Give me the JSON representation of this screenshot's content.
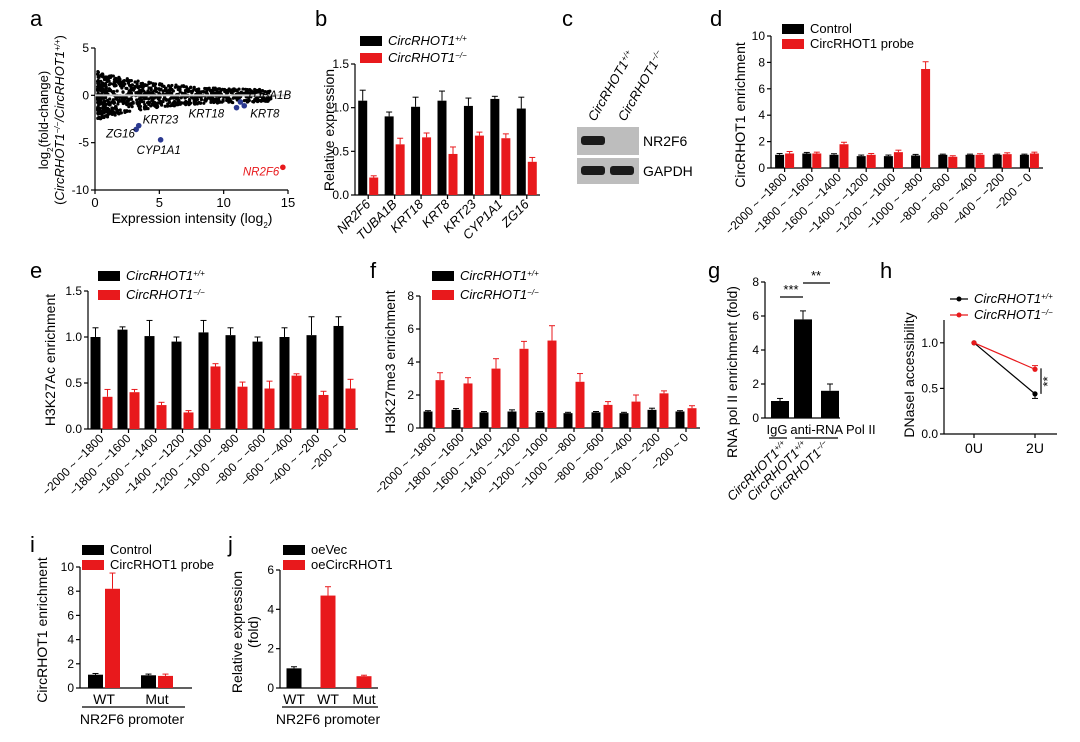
{
  "colors": {
    "black": "#000000",
    "red": "#e8191c",
    "grey": "#9a9a9a",
    "blue": "#2b3990"
  },
  "panels": {
    "a": {
      "letter": "a",
      "ylabel_line1": "log2(fold-change)",
      "ylabel_line2": "(CircRHOT1-/-/CircRHOT1+/+)",
      "xlabel": "Expression intensity (log2)"
    },
    "b": {
      "letter": "b",
      "ylabel": "Relative expression"
    },
    "c": {
      "letter": "c",
      "col1": "CircRHOT1+/+",
      "col2": "CircRHOT1-/-",
      "band1": "NR2F6",
      "band2": "GAPDH"
    },
    "d": {
      "letter": "d",
      "ylabel": "CircRHOT1 enrichment"
    },
    "e": {
      "letter": "e",
      "ylabel": "H3K27Ac enrichment"
    },
    "f": {
      "letter": "f",
      "ylabel": "H3K27me3 enrichment"
    },
    "g": {
      "letter": "g",
      "ylabel": "RNA pol II enrichment (fold)",
      "group1": "IgG",
      "group2": "anti-RNA Pol II"
    },
    "h": {
      "letter": "h",
      "ylabel": "DNaseI accessibility"
    },
    "i": {
      "letter": "i",
      "ylabel": "CircRHOT1 enrichment",
      "xgroup": "NR2F6 promoter"
    },
    "j": {
      "letter": "j",
      "ylabel_line1": "Relative expression",
      "ylabel_line2": "(fold)",
      "xgroup": "NR2F6 promoter"
    }
  },
  "chart_data": [
    {
      "panel": "a",
      "type": "scatter",
      "xlim": [
        0,
        15
      ],
      "ylim": [
        -10,
        5
      ],
      "xticks": [
        0,
        5,
        10,
        15
      ],
      "yticks": [
        -10,
        -5,
        0,
        5
      ],
      "highlighted": [
        {
          "label": "TUBA1B",
          "x": 11.3,
          "y": -0.7,
          "color": "blue"
        },
        {
          "label": "KRT18",
          "x": 11.0,
          "y": -1.3,
          "color": "blue"
        },
        {
          "label": "KRT8",
          "x": 11.6,
          "y": -1.1,
          "color": "blue"
        },
        {
          "label": "KRT23",
          "x": 3.4,
          "y": -3.2,
          "color": "blue"
        },
        {
          "label": "ZG16",
          "x": 3.2,
          "y": -3.6,
          "color": "blue"
        },
        {
          "label": "CYP1A1",
          "x": 5.1,
          "y": -4.7,
          "color": "blue"
        },
        {
          "label": "NR2F6",
          "x": 14.6,
          "y": -7.6,
          "color": "red"
        }
      ]
    },
    {
      "panel": "b",
      "type": "bar",
      "categories": [
        "NR2F6",
        "TUBA1B",
        "KRT18",
        "KRT8",
        "KRT23",
        "CYP1A1",
        "ZG16"
      ],
      "ylim": [
        0,
        1.5
      ],
      "yticks": [
        "0.0",
        "0.5",
        "1.0",
        "1.5"
      ],
      "series": [
        {
          "name": "CircRHOT1+/+",
          "color": "black",
          "values": [
            1.08,
            0.9,
            1.01,
            1.08,
            1.02,
            1.1,
            0.99
          ],
          "errors": [
            0.12,
            0.05,
            0.11,
            0.11,
            0.09,
            0.03,
            0.13
          ]
        },
        {
          "name": "CircRHOT1-/-",
          "color": "red",
          "values": [
            0.2,
            0.58,
            0.66,
            0.47,
            0.68,
            0.65,
            0.38
          ],
          "errors": [
            0.02,
            0.07,
            0.05,
            0.08,
            0.04,
            0.05,
            0.05
          ]
        }
      ]
    },
    {
      "panel": "d",
      "type": "bar",
      "categories": [
        "-2000 ~ -1800",
        "-1800 ~ -1600",
        "-1600 ~ -1400",
        "-1400 ~ -1200",
        "-1200 ~ -1000",
        "-1000 ~ -800",
        "-800 ~ -600",
        "-600 ~ -400",
        "-400 ~ -200",
        "-200 ~ 0"
      ],
      "ylim": [
        0,
        10
      ],
      "yticks": [
        "0",
        "2",
        "4",
        "6",
        "8",
        "10"
      ],
      "series": [
        {
          "name": "Control",
          "color": "black",
          "values": [
            1.0,
            1.1,
            1.0,
            0.9,
            0.9,
            0.95,
            1.0,
            1.0,
            1.0,
            1.0
          ],
          "errors": [
            0.1,
            0.08,
            0.08,
            0.08,
            0.08,
            0.08,
            0.05,
            0.05,
            0.05,
            0.05
          ]
        },
        {
          "name": "CircRHOT1 probe",
          "color": "red",
          "values": [
            1.1,
            1.1,
            1.8,
            1.0,
            1.2,
            7.5,
            0.85,
            1.0,
            1.05,
            1.1
          ],
          "errors": [
            0.15,
            0.1,
            0.15,
            0.1,
            0.15,
            0.55,
            0.08,
            0.08,
            0.1,
            0.1
          ]
        }
      ]
    },
    {
      "panel": "e",
      "type": "bar",
      "categories": [
        "-2000 ~ -1800",
        "-1800 ~ -1600",
        "-1600 ~ -1400",
        "-1400 ~ -1200",
        "-1200 ~ -1000",
        "-1000 ~ -800",
        "-800 ~ -600",
        "-600 ~ -400",
        "-400 ~ -200",
        "-200 ~ 0"
      ],
      "ylim": [
        0,
        1.5
      ],
      "yticks": [
        "0.0",
        "0.5",
        "1.0",
        "1.5"
      ],
      "series": [
        {
          "name": "CircRHOT1+/+",
          "color": "black",
          "values": [
            1.0,
            1.08,
            1.01,
            0.95,
            1.05,
            1.02,
            0.95,
            1.0,
            1.02,
            1.12
          ],
          "errors": [
            0.1,
            0.03,
            0.17,
            0.05,
            0.13,
            0.08,
            0.05,
            0.1,
            0.2,
            0.1
          ]
        },
        {
          "name": "CircRHOT1-/-",
          "color": "red",
          "values": [
            0.35,
            0.4,
            0.26,
            0.18,
            0.68,
            0.46,
            0.44,
            0.58,
            0.37,
            0.44
          ],
          "errors": [
            0.08,
            0.03,
            0.03,
            0.02,
            0.03,
            0.05,
            0.08,
            0.02,
            0.04,
            0.1
          ]
        }
      ]
    },
    {
      "panel": "f",
      "type": "bar",
      "categories": [
        "-2000 ~ -1800",
        "-1800 ~ -1600",
        "-1600 ~ -1400",
        "-1400 ~ -1200",
        "-1200 ~ -1000",
        "-1000 ~ -800",
        "-800 ~ -600",
        "-600 ~ -400",
        "-400 ~ -200",
        "-200 ~ 0"
      ],
      "ylim": [
        0,
        8
      ],
      "yticks": [
        "0",
        "2",
        "4",
        "6",
        "8"
      ],
      "series": [
        {
          "name": "CircRHOT1+/+",
          "color": "black",
          "values": [
            1.0,
            1.1,
            0.95,
            1.0,
            0.95,
            0.9,
            0.95,
            0.9,
            1.1,
            1.0
          ],
          "errors": [
            0.05,
            0.08,
            0.05,
            0.1,
            0.05,
            0.05,
            0.05,
            0.05,
            0.1,
            0.05
          ]
        },
        {
          "name": "CircRHOT1-/-",
          "color": "red",
          "values": [
            2.9,
            2.7,
            3.6,
            4.8,
            5.3,
            2.8,
            1.4,
            1.6,
            2.1,
            1.2
          ],
          "errors": [
            0.45,
            0.35,
            0.6,
            0.45,
            0.9,
            0.5,
            0.2,
            0.4,
            0.15,
            0.15
          ]
        }
      ]
    },
    {
      "panel": "g",
      "type": "bar",
      "categories": [
        "CircRHOT1+/+",
        "CircRHOT1+/+",
        "CircRHOT1-/-"
      ],
      "ylim": [
        0,
        8
      ],
      "yticks": [
        "0",
        "2",
        "4",
        "6",
        "8"
      ],
      "values": [
        1.0,
        5.8,
        1.6
      ],
      "errors": [
        0.15,
        0.5,
        0.4
      ],
      "significance": [
        "***",
        "**"
      ]
    },
    {
      "panel": "h",
      "type": "line",
      "x": [
        "0U",
        "2U"
      ],
      "ylim": [
        0,
        1.25
      ],
      "yticks": [
        "0.0",
        "0.5",
        "1.0"
      ],
      "significance": "**",
      "series": [
        {
          "name": "CircRHOT1+/+",
          "color": "black",
          "values": [
            1.0,
            0.44
          ],
          "errors": [
            0.0,
            0.05
          ]
        },
        {
          "name": "CircRHOT1-/-",
          "color": "red",
          "values": [
            1.0,
            0.71
          ],
          "errors": [
            0.0,
            0.04
          ]
        }
      ]
    },
    {
      "panel": "i",
      "type": "bar",
      "categories": [
        "WT",
        "Mut"
      ],
      "ylim": [
        0,
        10
      ],
      "yticks": [
        "0",
        "2",
        "4",
        "6",
        "8",
        "10"
      ],
      "series": [
        {
          "name": "Control",
          "color": "black",
          "values": [
            1.1,
            1.05
          ],
          "errors": [
            0.1,
            0.1
          ]
        },
        {
          "name": "CircRHOT1 probe",
          "color": "red",
          "values": [
            8.2,
            1.0
          ],
          "errors": [
            1.3,
            0.15
          ]
        }
      ]
    },
    {
      "panel": "j",
      "type": "bar",
      "categories": [
        "WT",
        "WT",
        "Mut"
      ],
      "ylim": [
        0,
        6
      ],
      "yticks": [
        "0",
        "2",
        "4",
        "6"
      ],
      "values": [
        1.0,
        4.7,
        0.6
      ],
      "errors": [
        0.08,
        0.45,
        0.05
      ],
      "bar_colors": [
        "black",
        "red",
        "red"
      ],
      "legend": [
        {
          "name": "oeVec",
          "color": "black"
        },
        {
          "name": "oeCircRHOT1",
          "color": "red"
        }
      ]
    }
  ]
}
